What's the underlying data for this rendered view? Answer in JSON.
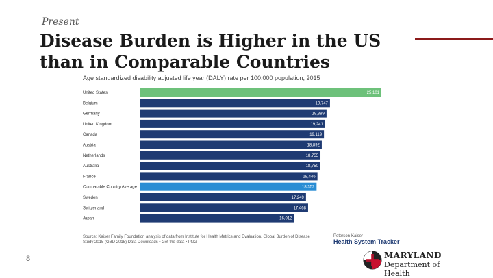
{
  "slide": {
    "section": "Present",
    "title": "Disease Burden is Higher in the US than in Comparable Countries",
    "page_number": "8"
  },
  "chart_data": {
    "type": "bar",
    "orientation": "horizontal",
    "subtitle": "Age standardized disability adjusted life year (DALY) rate per 100,000 population, 2015",
    "categories": [
      "United States",
      "Belgium",
      "Germany",
      "United Kingdom",
      "Canada",
      "Austria",
      "Netherlands",
      "Australia",
      "France",
      "Comparable Country Average",
      "Sweden",
      "Switzerland",
      "Japan"
    ],
    "values": [
      25101,
      19747,
      19389,
      19241,
      19119,
      18892,
      18755,
      18750,
      18446,
      18352,
      17249,
      17468,
      16012
    ],
    "value_labels": [
      "25,101",
      "19,747",
      "19,389",
      "19,241",
      "19,119",
      "18,892",
      "18,755",
      "18,750",
      "18,446",
      "18,352",
      "17,249",
      "17,468",
      "16,012"
    ],
    "colors": [
      "#6dc17a",
      "#1f3b73",
      "#1f3b73",
      "#1f3b73",
      "#1f3b73",
      "#1f3b73",
      "#1f3b73",
      "#1f3b73",
      "#1f3b73",
      "#2a8dd4",
      "#1f3b73",
      "#1f3b73",
      "#1f3b73"
    ],
    "xlim": [
      0,
      25101
    ],
    "grid": false,
    "legend": "none",
    "source": "Source: Kaiser Family Foundation analysis of data from Institute for Health Metrics and Evaluation, Global Burden of Disease Study 2015 (GBD 2015) Data Downloads • Get the data • PNG"
  },
  "tracker_logo": {
    "line1": "Peterson-Kaiser",
    "line2": "Health System Tracker"
  },
  "md_logo": {
    "line1": "MARYLAND",
    "line2": "Department of Health"
  }
}
